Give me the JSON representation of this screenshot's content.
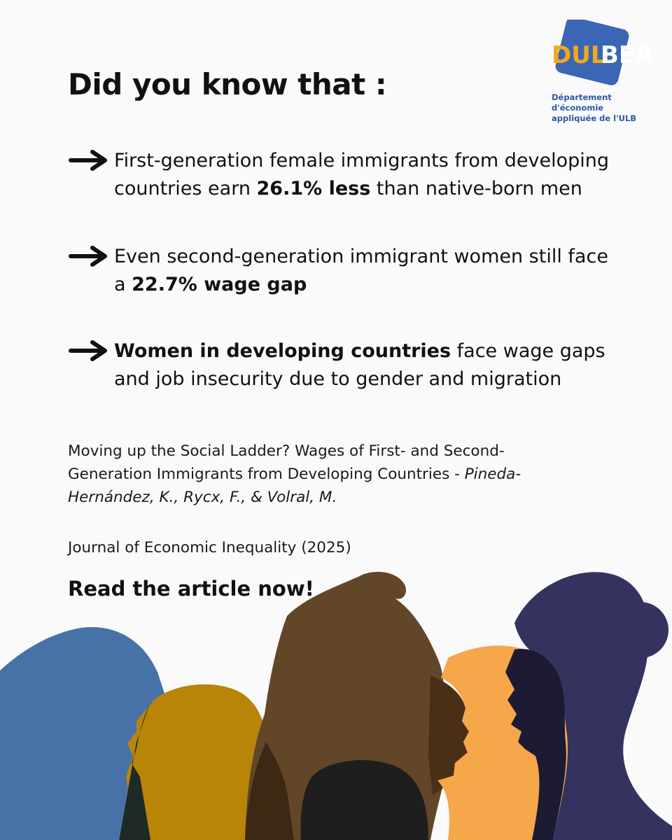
{
  "logo": {
    "wordmark_part1": "DUL",
    "wordmark_part2": "BEA",
    "caption_line1": "Département d'économie",
    "caption_line2": "appliquée de l'ULB",
    "colors": {
      "square": "#3a66b5",
      "text_gold": "#f3a81c",
      "text_white": "#ffffff"
    }
  },
  "heading": "Did you know that :",
  "bullets": [
    {
      "icon": "arrow-right-icon",
      "pre": "First-generation female immigrants from developing countries earn ",
      "bold": "26.1% less",
      "post": " than native-born men"
    },
    {
      "icon": "arrow-right-icon",
      "pre": "Even second-generation immigrant women still face a ",
      "bold": "22.7% wage gap",
      "post": ""
    },
    {
      "icon": "arrow-right-icon",
      "pre": "",
      "bold": "Women in developing countries",
      "post": " face wage gaps and job insecurity due to gender and migration"
    }
  ],
  "citation": {
    "title": "Moving up the Social Ladder? Wages of First- and Second-Generation Immigrants from Developing Countries - ",
    "authors": "Pineda-Hernández, K., Rycx, F., & Volral, M."
  },
  "journal": "Journal of Economic Inequality (2025)",
  "cta": "Read the article now!",
  "illustration": {
    "name": "women-silhouettes-illustration",
    "colors": [
      "#4a74a6",
      "#b8860b",
      "#5f4628",
      "#f7a94a",
      "#353561",
      "#1e1e1e"
    ]
  }
}
